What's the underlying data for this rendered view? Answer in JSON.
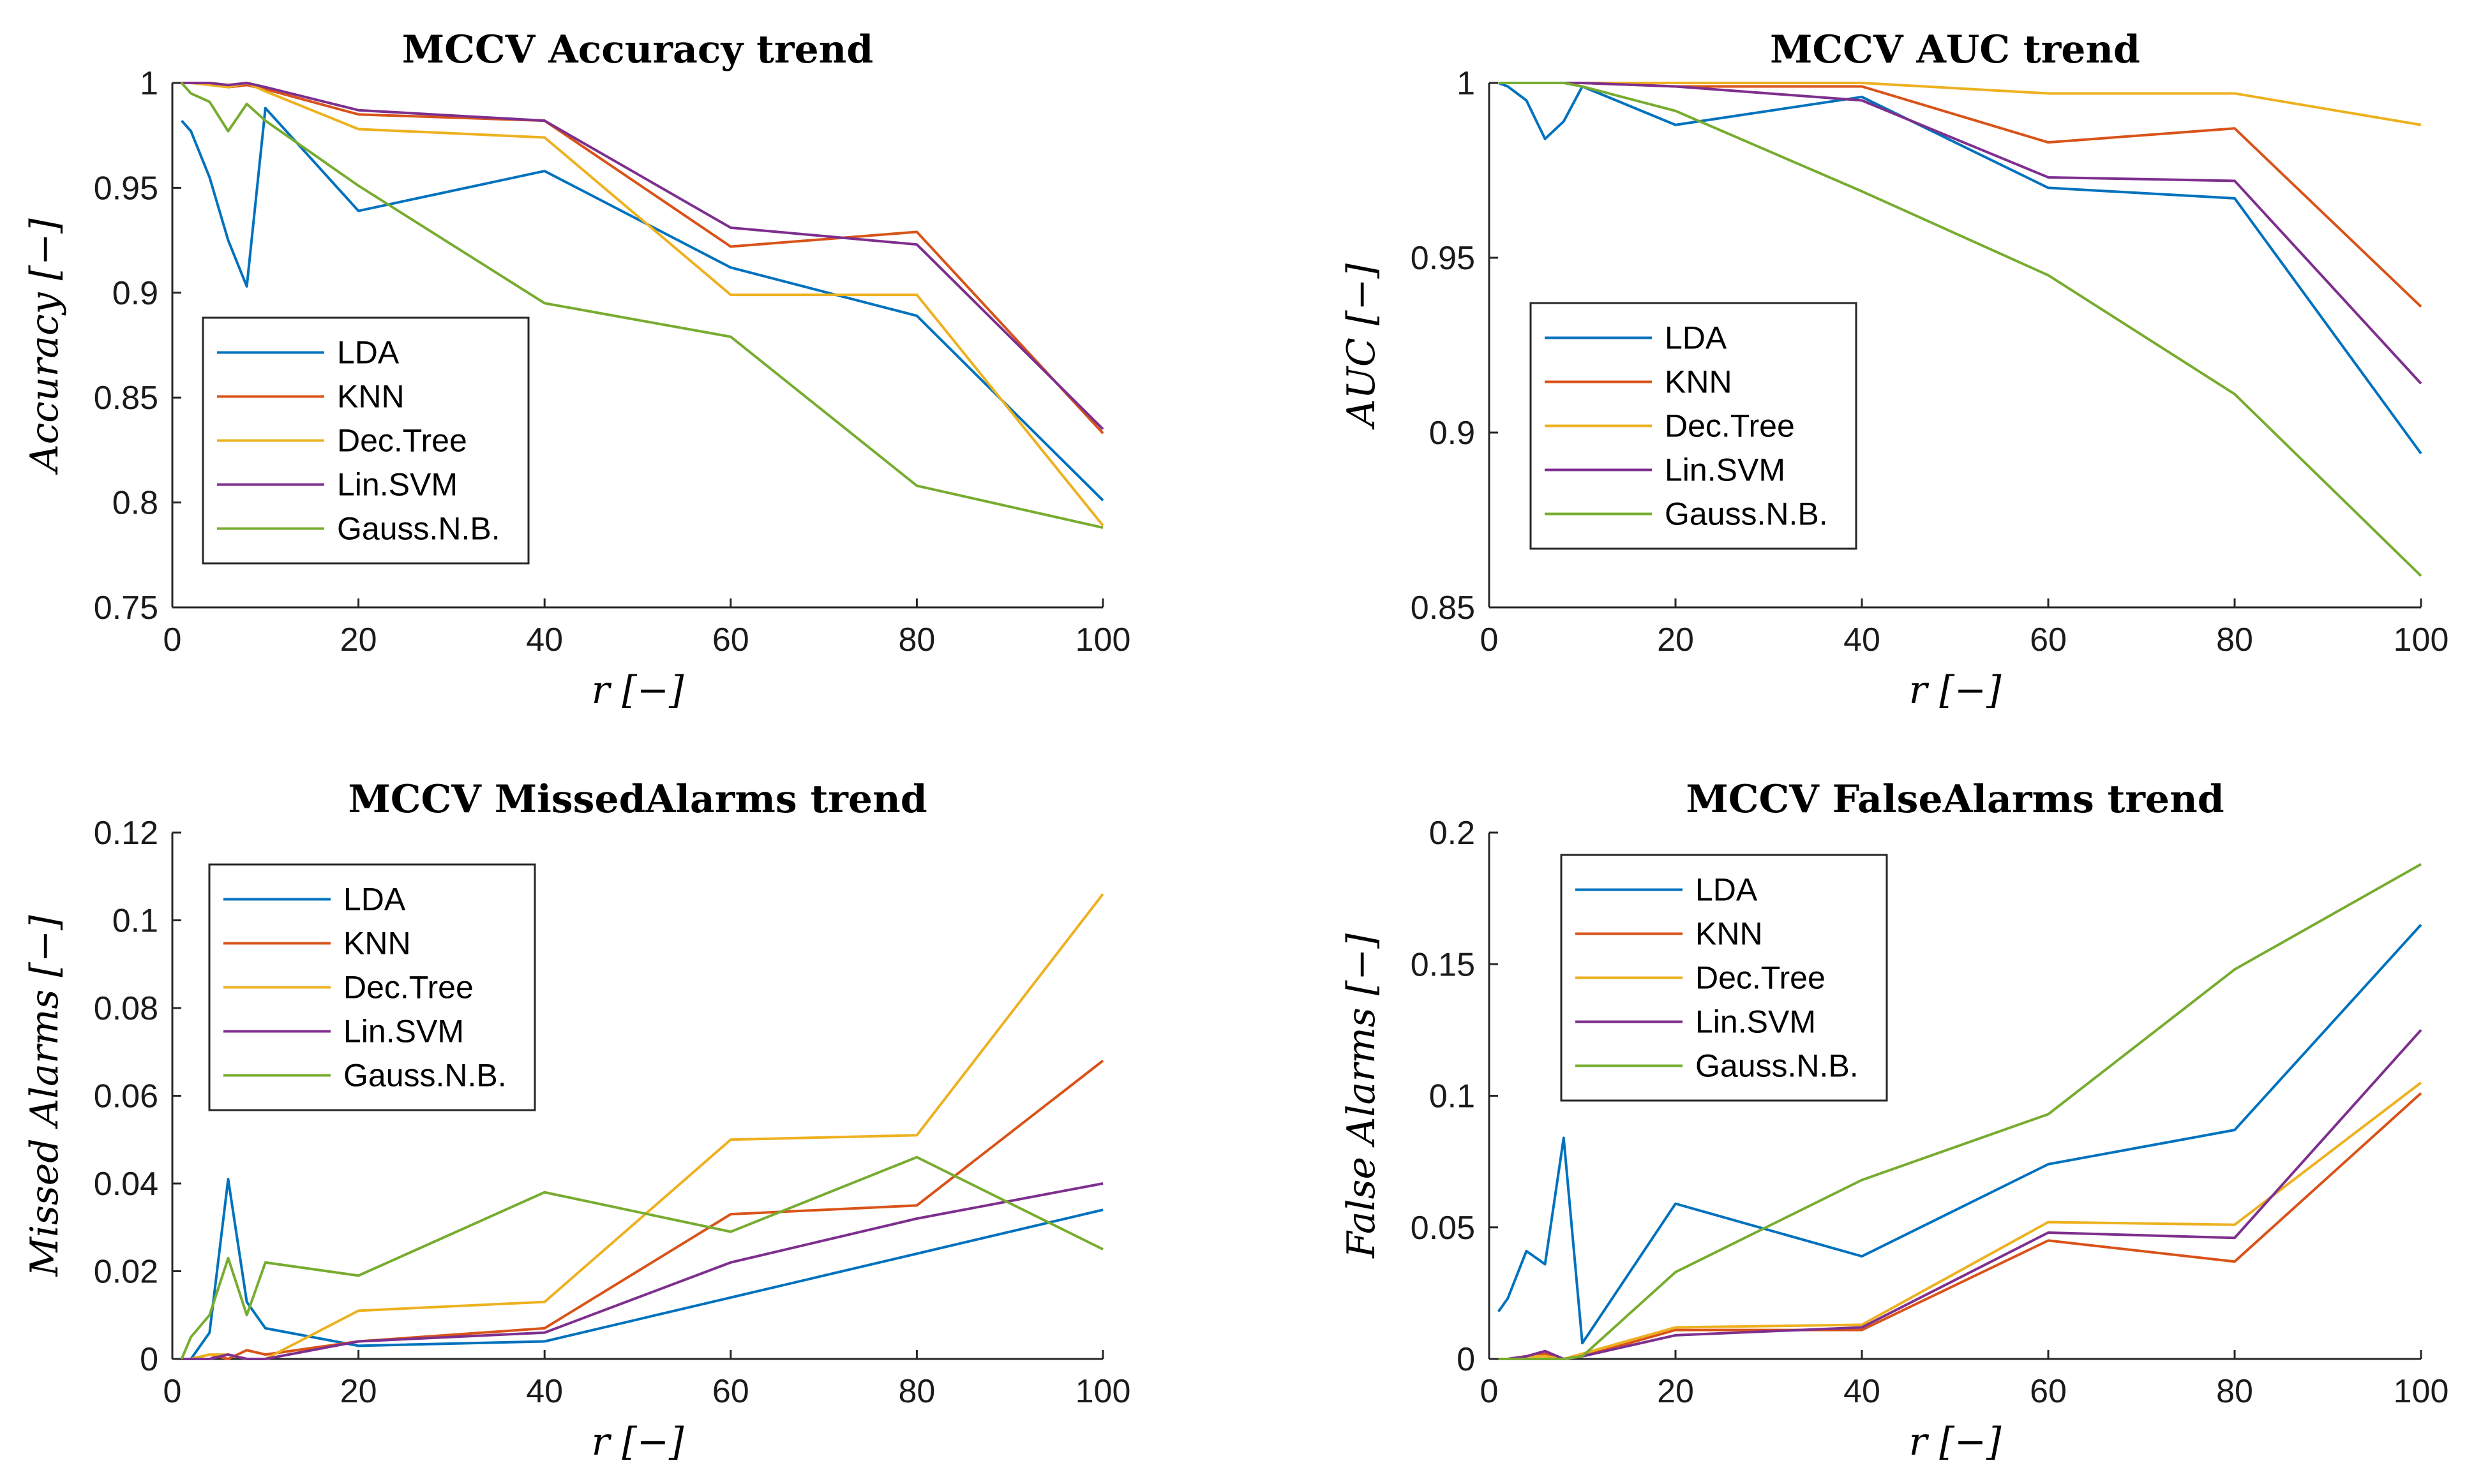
{
  "colors": {
    "LDA": "#0072BD",
    "KNN": "#D95319",
    "Dec.Tree": "#EDB120",
    "Lin.SVM": "#7E2F8E",
    "Gauss.N.B.": "#77AC30"
  },
  "chart_data": [
    {
      "type": "line",
      "title": "MCCV Accuracy trend",
      "xlabel": "r [−]",
      "ylabel": "Accuracy [−]",
      "xlim": [
        0,
        100
      ],
      "ylim": [
        0.75,
        1
      ],
      "xticks": [
        0,
        20,
        40,
        60,
        80,
        100
      ],
      "xtick_labels": [
        "0",
        "20",
        "40",
        "60",
        "80",
        "100"
      ],
      "yticks": [
        0.75,
        0.8,
        0.85,
        0.9,
        0.95,
        1
      ],
      "ytick_labels": [
        "0.75",
        "0.8",
        "0.85",
        "0.9",
        "0.95",
        "1"
      ],
      "grid": false,
      "legend_position": "bottom-left",
      "x": [
        1,
        2,
        4,
        6,
        8,
        10,
        20,
        40,
        60,
        80,
        100
      ],
      "series": [
        {
          "name": "LDA",
          "values": [
            0.982,
            0.977,
            0.955,
            0.925,
            0.903,
            0.988,
            0.939,
            0.958,
            0.912,
            0.889,
            0.801
          ]
        },
        {
          "name": "KNN",
          "values": [
            1.0,
            1.0,
            1.0,
            0.998,
            0.999,
            0.997,
            0.985,
            0.982,
            0.922,
            0.929,
            0.833
          ]
        },
        {
          "name": "Dec.Tree",
          "values": [
            1.0,
            1.0,
            0.999,
            0.998,
            1.0,
            0.996,
            0.978,
            0.974,
            0.899,
            0.899,
            0.789
          ]
        },
        {
          "name": "Lin.SVM",
          "values": [
            1.0,
            1.0,
            1.0,
            0.999,
            1.0,
            0.998,
            0.987,
            0.982,
            0.931,
            0.923,
            0.835
          ]
        },
        {
          "name": "Gauss.N.B.",
          "values": [
            1.0,
            0.995,
            0.991,
            0.977,
            0.99,
            0.982,
            0.951,
            0.895,
            0.879,
            0.808,
            0.788
          ]
        }
      ]
    },
    {
      "type": "line",
      "title": "MCCV AUC trend",
      "xlabel": "r [−]",
      "ylabel": "AUC [−]",
      "xlim": [
        0,
        100
      ],
      "ylim": [
        0.85,
        1
      ],
      "xticks": [
        0,
        20,
        40,
        60,
        80,
        100
      ],
      "xtick_labels": [
        "0",
        "20",
        "40",
        "60",
        "80",
        "100"
      ],
      "yticks": [
        0.85,
        0.9,
        0.95,
        1
      ],
      "ytick_labels": [
        "0.85",
        "0.9",
        "0.95",
        "1"
      ],
      "grid": false,
      "legend_position": "bottom-left",
      "x": [
        1,
        2,
        4,
        6,
        8,
        10,
        20,
        40,
        60,
        80,
        100
      ],
      "series": [
        {
          "name": "LDA",
          "values": [
            1.0,
            0.999,
            0.995,
            0.984,
            0.989,
            0.999,
            0.988,
            0.996,
            0.97,
            0.967,
            0.894
          ]
        },
        {
          "name": "KNN",
          "values": [
            1.0,
            1.0,
            1.0,
            1.0,
            1.0,
            1.0,
            0.999,
            0.999,
            0.983,
            0.987,
            0.936
          ]
        },
        {
          "name": "Dec.Tree",
          "values": [
            1.0,
            1.0,
            1.0,
            1.0,
            1.0,
            1.0,
            1.0,
            1.0,
            0.997,
            0.997,
            0.988
          ]
        },
        {
          "name": "Lin.SVM",
          "values": [
            1.0,
            1.0,
            1.0,
            1.0,
            1.0,
            1.0,
            0.999,
            0.995,
            0.973,
            0.972,
            0.914
          ]
        },
        {
          "name": "Gauss.N.B.",
          "values": [
            1.0,
            1.0,
            1.0,
            1.0,
            1.0,
            0.999,
            0.992,
            0.969,
            0.945,
            0.911,
            0.859
          ]
        }
      ]
    },
    {
      "type": "line",
      "title": "MCCV MissedAlarms trend",
      "xlabel": "r [−]",
      "ylabel": "Missed Alarms [−]",
      "xlim": [
        0,
        100
      ],
      "ylim": [
        0,
        0.12
      ],
      "xticks": [
        0,
        20,
        40,
        60,
        80,
        100
      ],
      "xtick_labels": [
        "0",
        "20",
        "40",
        "60",
        "80",
        "100"
      ],
      "yticks": [
        0,
        0.02,
        0.04,
        0.06,
        0.08,
        0.1,
        0.12
      ],
      "ytick_labels": [
        "0",
        "0.02",
        "0.04",
        "0.06",
        "0.08",
        "0.1",
        "0.12"
      ],
      "grid": false,
      "legend_position": "top-left",
      "x": [
        1,
        2,
        4,
        6,
        8,
        10,
        20,
        40,
        60,
        80,
        100
      ],
      "series": [
        {
          "name": "LDA",
          "values": [
            0.0,
            0.0,
            0.006,
            0.041,
            0.013,
            0.007,
            0.003,
            0.004,
            0.014,
            0.024,
            0.034
          ]
        },
        {
          "name": "KNN",
          "values": [
            0.0,
            0.0,
            0.001,
            0.0,
            0.002,
            0.001,
            0.004,
            0.007,
            0.033,
            0.035,
            0.068
          ]
        },
        {
          "name": "Dec.Tree",
          "values": [
            0.0,
            0.0,
            0.001,
            0.001,
            0.0,
            0.0,
            0.011,
            0.013,
            0.05,
            0.051,
            0.106
          ]
        },
        {
          "name": "Lin.SVM",
          "values": [
            0.0,
            0.0,
            0.0,
            0.001,
            0.0,
            0.0,
            0.004,
            0.006,
            0.022,
            0.032,
            0.04
          ]
        },
        {
          "name": "Gauss.N.B.",
          "values": [
            0.0,
            0.005,
            0.01,
            0.023,
            0.01,
            0.022,
            0.019,
            0.038,
            0.029,
            0.046,
            0.025
          ]
        }
      ]
    },
    {
      "type": "line",
      "title": "MCCV FalseAlarms trend",
      "xlabel": "r [−]",
      "ylabel": "False Alarms [−]",
      "xlim": [
        0,
        100
      ],
      "ylim": [
        0,
        0.2
      ],
      "xticks": [
        0,
        20,
        40,
        60,
        80,
        100
      ],
      "xtick_labels": [
        "0",
        "20",
        "40",
        "60",
        "80",
        "100"
      ],
      "yticks": [
        0,
        0.05,
        0.1,
        0.15,
        0.2
      ],
      "ytick_labels": [
        "0",
        "0.05",
        "0.1",
        "0.15",
        "0.2"
      ],
      "grid": false,
      "legend_position": "top-left",
      "x": [
        1,
        2,
        4,
        6,
        8,
        10,
        20,
        40,
        60,
        80,
        100
      ],
      "series": [
        {
          "name": "LDA",
          "values": [
            0.018,
            0.023,
            0.041,
            0.036,
            0.084,
            0.006,
            0.059,
            0.039,
            0.074,
            0.087,
            0.165
          ]
        },
        {
          "name": "KNN",
          "values": [
            0.0,
            0.0,
            0.001,
            0.002,
            0.0,
            0.001,
            0.011,
            0.011,
            0.045,
            0.037,
            0.101
          ]
        },
        {
          "name": "Dec.Tree",
          "values": [
            0.0,
            0.0,
            0.001,
            0.001,
            0.0,
            0.002,
            0.012,
            0.013,
            0.052,
            0.051,
            0.105
          ]
        },
        {
          "name": "Lin.SVM",
          "values": [
            0.0,
            0.0,
            0.001,
            0.003,
            0.0,
            0.001,
            0.009,
            0.012,
            0.048,
            0.046,
            0.125
          ]
        },
        {
          "name": "Gauss.N.B.",
          "values": [
            0.0,
            0.0,
            0.0,
            0.0,
            0.0,
            0.001,
            0.033,
            0.068,
            0.093,
            0.148,
            0.188
          ]
        }
      ]
    }
  ]
}
